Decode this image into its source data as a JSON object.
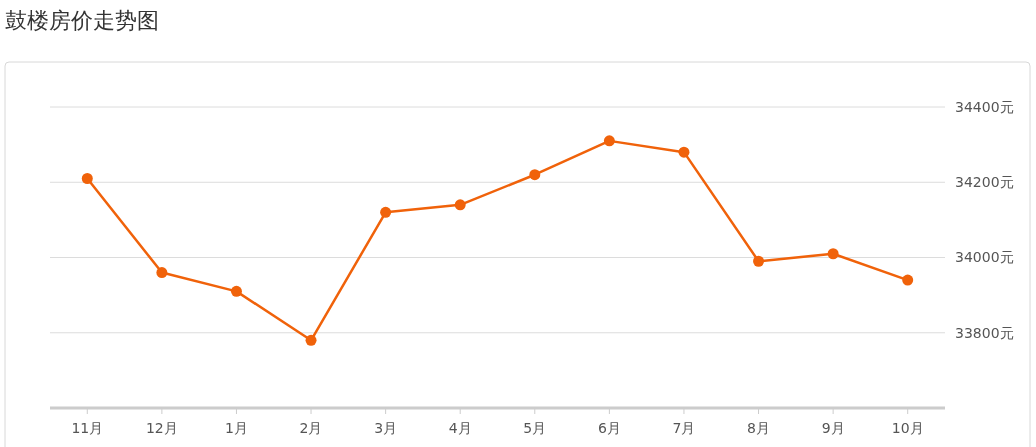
{
  "chart_data": {
    "type": "line",
    "title": "鼓楼房价走势图",
    "categories": [
      "11月",
      "12月",
      "1月",
      "2月",
      "3月",
      "4月",
      "5月",
      "6月",
      "7月",
      "8月",
      "9月",
      "10月"
    ],
    "series": [
      {
        "color": "#f0620a",
        "values": [
          34210,
          33960,
          33910,
          33780,
          34120,
          34140,
          34220,
          34310,
          34280,
          33990,
          34010,
          33940
        ]
      }
    ],
    "ylim": [
      33600,
      34400
    ],
    "yticks": [
      {
        "value": 33800,
        "label": "33800元"
      },
      {
        "value": 34000,
        "label": "34000元"
      },
      {
        "value": 34200,
        "label": "34200元"
      },
      {
        "value": 34400,
        "label": "34400元"
      }
    ],
    "grid": "y",
    "marker": "circle",
    "line_style": "solid"
  }
}
